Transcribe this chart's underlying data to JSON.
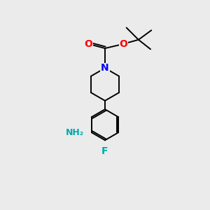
{
  "bg_color": "#ebebeb",
  "bond_color": "#000000",
  "bond_width": 1.4,
  "N_color": "#0000ff",
  "O_color": "#ff0000",
  "F_color": "#00aaaa",
  "NH2_color": "#00aaaa",
  "figsize": [
    3.0,
    3.0
  ],
  "dpi": 100,
  "xlim": [
    0,
    10
  ],
  "ylim": [
    0,
    12
  ]
}
